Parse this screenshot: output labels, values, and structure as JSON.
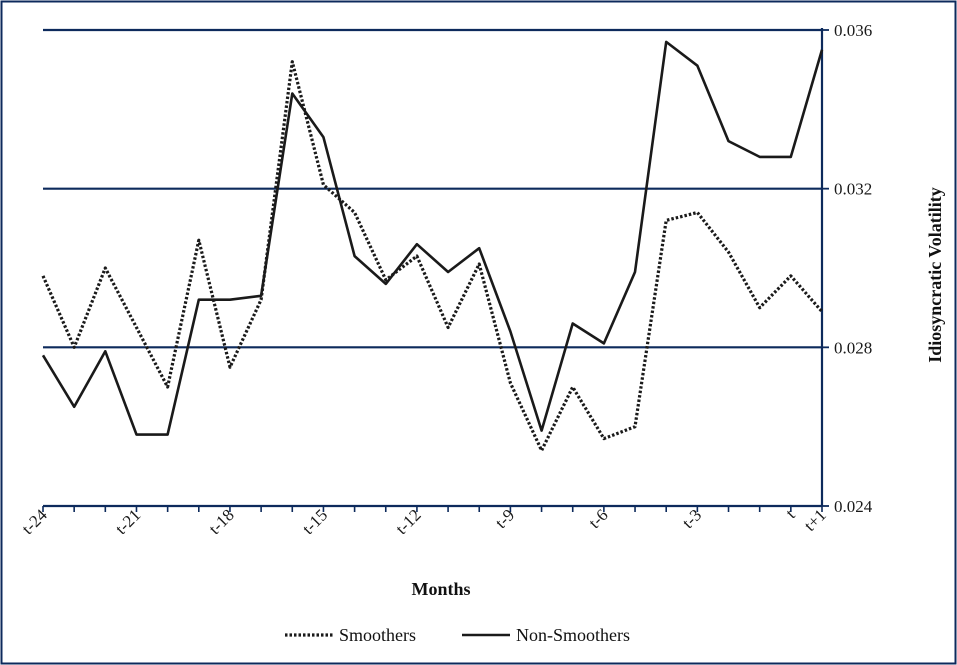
{
  "chart_data": {
    "type": "line",
    "xlabel": "Months",
    "ylabel": "Idiosyncratic Volatility",
    "x": [
      "t-24",
      "t-23",
      "t-22",
      "t-21",
      "t-20",
      "t-19",
      "t-18",
      "t-17",
      "t-16",
      "t-15",
      "t-14",
      "t-13",
      "t-12",
      "t-11",
      "t-10",
      "t-9",
      "t-8",
      "t-7",
      "t-6",
      "t-5",
      "t-4",
      "t-3",
      "t-2",
      "t-1",
      "t",
      "t+1"
    ],
    "x_tick_labels": [
      "t-24",
      "t-21",
      "t-18",
      "t-15",
      "t-12",
      "t-9",
      "t-6",
      "t-3",
      "t",
      "t+1"
    ],
    "y_ticks": [
      "0.024",
      "0.028",
      "0.032",
      "0.036"
    ],
    "ylim": [
      0.024,
      0.036
    ],
    "y_axis_position": "right",
    "grid": "horizontal",
    "legend_position": "bottom",
    "series": [
      {
        "name": "Smoothers",
        "style": "dotted",
        "color": "#1a1a1a",
        "values": [
          0.0298,
          0.028,
          0.03,
          0.0285,
          0.027,
          0.0307,
          0.0275,
          0.0292,
          0.0352,
          0.0321,
          0.0314,
          0.0297,
          0.0303,
          0.0285,
          0.0301,
          0.0271,
          0.0254,
          0.027,
          0.0257,
          0.026,
          0.0312,
          0.0314,
          0.0304,
          0.029,
          0.0298,
          0.0289
        ]
      },
      {
        "name": "Non-Smoothers",
        "style": "solid",
        "color": "#1a1a1a",
        "values": [
          0.0278,
          0.0265,
          0.0279,
          0.0258,
          0.0258,
          0.0292,
          0.0292,
          0.0293,
          0.0344,
          0.0333,
          0.0303,
          0.0296,
          0.0306,
          0.0299,
          0.0305,
          0.0284,
          0.0259,
          0.0286,
          0.0281,
          0.0299,
          0.0357,
          0.0351,
          0.0332,
          0.0328,
          0.0328,
          0.0355
        ]
      }
    ]
  },
  "colors": {
    "frame": "#0d2a5c",
    "gridline": "#0d2a5c",
    "background": "#ffffff"
  }
}
